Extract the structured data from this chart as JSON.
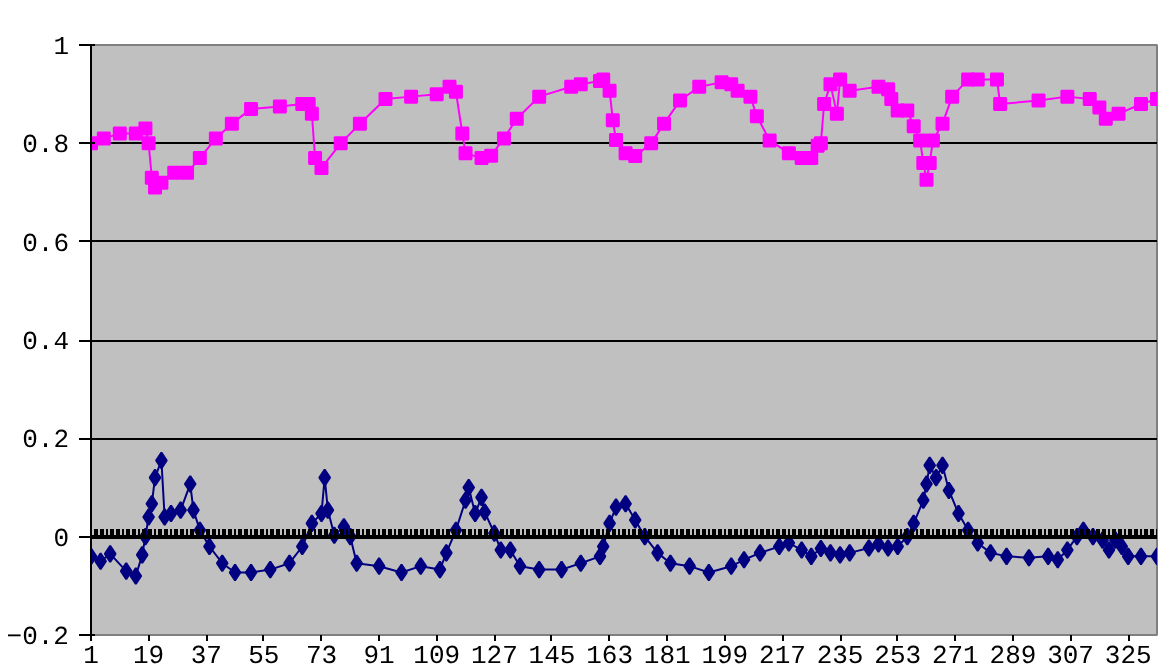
{
  "chart_data": {
    "type": "line",
    "xlim": [
      1,
      334
    ],
    "xticks": [
      1,
      19,
      37,
      55,
      73,
      91,
      109,
      127,
      145,
      163,
      181,
      199,
      217,
      235,
      253,
      271,
      289,
      307,
      325
    ],
    "ylim": [
      -0.2,
      1
    ],
    "yticks": [
      -0.2,
      0,
      0.2,
      0.4,
      0.6,
      0.8,
      1
    ],
    "grid": "y",
    "series": [
      {
        "color": "#ff00ff",
        "marker": "square",
        "x": [
          1,
          5,
          10,
          15,
          18,
          19,
          20,
          21,
          23,
          27,
          31,
          35,
          40,
          45,
          51,
          60,
          67,
          69,
          70,
          71,
          73,
          79,
          85,
          93,
          101,
          109,
          113,
          115,
          117,
          118,
          123,
          126,
          130,
          134,
          141,
          151,
          154,
          160,
          161,
          163,
          164,
          165,
          168,
          171,
          176,
          180,
          185,
          191,
          198,
          201,
          203,
          207,
          209,
          213,
          219,
          223,
          226,
          228,
          229,
          230,
          232,
          234,
          235,
          238,
          247,
          250,
          251,
          253,
          256,
          258,
          260,
          261,
          262,
          263,
          264,
          267,
          270,
          275,
          278,
          284,
          285,
          297,
          306,
          313,
          316,
          318,
          322,
          329,
          334
        ],
        "values": [
          0.8,
          0.81,
          0.82,
          0.82,
          0.83,
          0.8,
          0.73,
          0.71,
          0.72,
          0.74,
          0.74,
          0.77,
          0.81,
          0.84,
          0.87,
          0.875,
          0.88,
          0.88,
          0.86,
          0.77,
          0.75,
          0.8,
          0.84,
          0.89,
          0.895,
          0.9,
          0.915,
          0.905,
          0.82,
          0.78,
          0.77,
          0.775,
          0.81,
          0.85,
          0.895,
          0.915,
          0.92,
          0.927,
          0.93,
          0.907,
          0.847,
          0.807,
          0.78,
          0.774,
          0.8,
          0.84,
          0.887,
          0.915,
          0.924,
          0.92,
          0.907,
          0.895,
          0.855,
          0.806,
          0.78,
          0.77,
          0.77,
          0.795,
          0.8,
          0.88,
          0.92,
          0.86,
          0.93,
          0.907,
          0.915,
          0.91,
          0.89,
          0.867,
          0.867,
          0.835,
          0.806,
          0.76,
          0.726,
          0.76,
          0.806,
          0.84,
          0.895,
          0.93,
          0.93,
          0.93,
          0.88,
          0.887,
          0.895,
          0.89,
          0.873,
          0.85,
          0.86,
          0.88,
          0.89
        ]
      },
      {
        "color": "#000080",
        "marker": "diamond",
        "x": [
          1,
          4,
          7,
          12,
          15,
          17,
          18,
          19,
          20,
          21,
          23,
          24,
          26,
          29,
          32,
          33,
          35,
          38,
          42,
          46,
          51,
          57,
          63,
          67,
          70,
          73,
          74,
          75,
          77,
          80,
          82,
          84,
          91,
          98,
          104,
          110,
          112,
          115,
          118,
          119,
          121,
          123,
          124,
          127,
          129,
          132,
          135,
          141,
          148,
          154,
          160,
          161,
          163,
          165,
          168,
          171,
          174,
          178,
          182,
          188,
          194,
          201,
          205,
          210,
          216,
          219,
          223,
          226,
          229,
          232,
          235,
          238,
          244,
          247,
          250,
          253,
          256,
          258,
          261,
          262,
          263,
          265,
          267,
          269,
          272,
          275,
          278,
          282,
          287,
          294,
          300,
          303,
          306,
          309,
          311,
          314,
          317,
          319,
          321,
          323,
          325,
          329,
          334
        ],
        "values": [
          -0.04,
          -0.05,
          -0.035,
          -0.07,
          -0.08,
          -0.037,
          0,
          0.04,
          0.067,
          0.12,
          0.155,
          0.04,
          0.047,
          0.054,
          0.107,
          0.054,
          0.013,
          -0.02,
          -0.054,
          -0.073,
          -0.073,
          -0.067,
          -0.054,
          -0.02,
          0.027,
          0.047,
          0.12,
          0.054,
          0.003,
          0.02,
          0,
          -0.054,
          -0.06,
          -0.073,
          -0.06,
          -0.067,
          -0.033,
          0.013,
          0.074,
          0.1,
          0.047,
          0.08,
          0.05,
          0.007,
          -0.027,
          -0.027,
          -0.06,
          -0.067,
          -0.067,
          -0.054,
          -0.04,
          -0.02,
          0.027,
          0.06,
          0.067,
          0.034,
          0,
          -0.033,
          -0.054,
          -0.06,
          -0.073,
          -0.06,
          -0.047,
          -0.033,
          -0.02,
          -0.013,
          -0.027,
          -0.04,
          -0.024,
          -0.033,
          -0.037,
          -0.033,
          -0.023,
          -0.015,
          -0.023,
          -0.02,
          0,
          0.027,
          0.074,
          0.107,
          0.145,
          0.12,
          0.145,
          0.094,
          0.047,
          0.013,
          -0.013,
          -0.033,
          -0.04,
          -0.043,
          -0.04,
          -0.047,
          -0.027,
          0,
          0.013,
          0,
          -0.007,
          -0.027,
          -0.007,
          -0.02,
          -0.04,
          -0.04,
          -0.04
        ]
      }
    ]
  }
}
